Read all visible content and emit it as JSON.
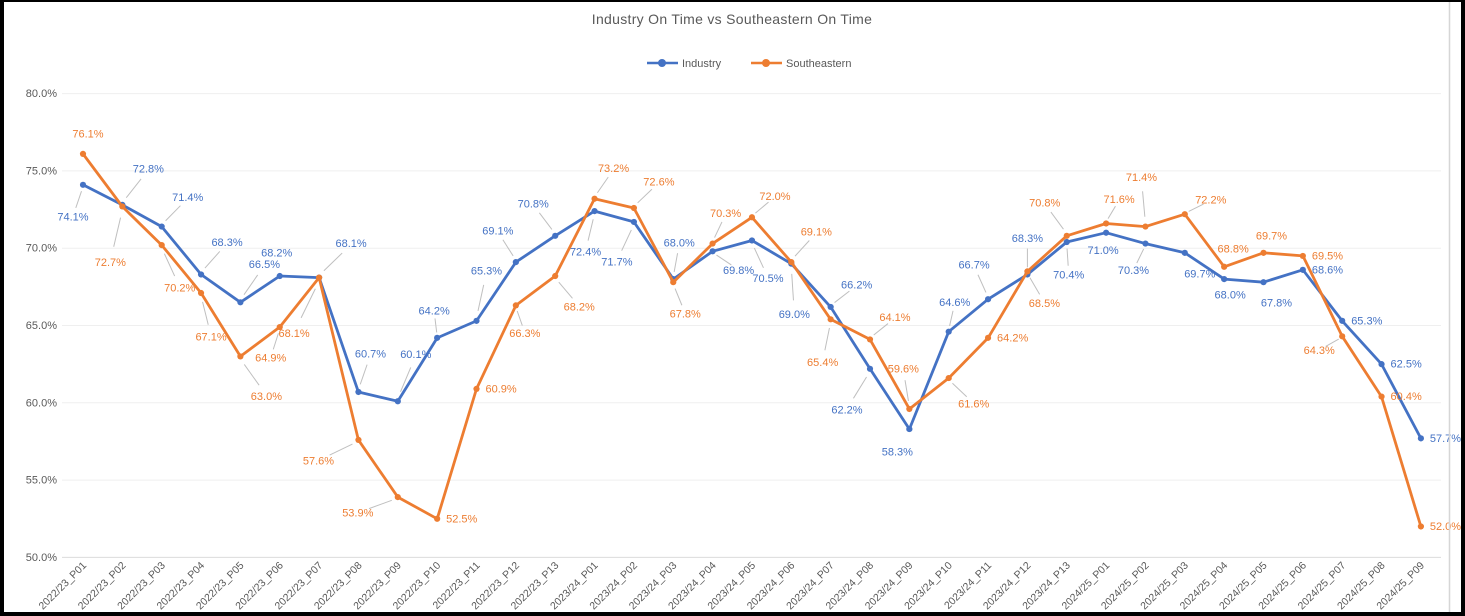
{
  "chart_data": {
    "type": "line",
    "title": "Industry On Time vs Southeastern On Time",
    "legend_position": "top",
    "grid": true,
    "data_labels": true,
    "data_label_format": "0.0%",
    "categories": [
      "2022/23_P01",
      "2022/23_P02",
      "2022/23_P03",
      "2022/23_P04",
      "2022/23_P05",
      "2022/23_P06",
      "2022/23_P07",
      "2022/23_P08",
      "2022/23_P09",
      "2022/23_P10",
      "2022/23_P11",
      "2022/23_P12",
      "2022/23_P13",
      "2023/24_P01",
      "2023/24_P02",
      "2023/24_P03",
      "2023/24_P04",
      "2023/24_P05",
      "2023/24_P06",
      "2023/24_P07",
      "2023/24_P08",
      "2023/24_P09",
      "2023/24_P10",
      "2023/24_P11",
      "2023/24_P12",
      "2023/24_P13",
      "2024/25_P01",
      "2024/25_P02",
      "2024/25_P03",
      "2024/25_P04",
      "2024/25_P05",
      "2024/25_P06",
      "2024/25_P07",
      "2024/25_P08",
      "2024/25_P09"
    ],
    "y_axis": {
      "min": 50,
      "max": 80,
      "step": 5,
      "tick_values": [
        80,
        75,
        70,
        65,
        60,
        55,
        50
      ],
      "tick_labels": [
        "80.0%",
        "75.0%",
        "70.0%",
        "65.0%",
        "60.0%",
        "55.0%",
        "50.0%"
      ]
    },
    "series": [
      {
        "name": "Industry",
        "color": "#4472C4",
        "values": [
          74.1,
          72.8,
          71.4,
          68.3,
          66.5,
          68.2,
          68.1,
          60.7,
          60.1,
          64.2,
          65.3,
          69.1,
          70.8,
          72.4,
          71.7,
          68.0,
          69.8,
          70.5,
          69.0,
          66.2,
          62.2,
          58.3,
          64.6,
          66.7,
          68.3,
          70.4,
          71.0,
          70.3,
          69.7,
          68.0,
          67.8,
          68.6,
          65.3,
          62.5,
          57.7
        ]
      },
      {
        "name": "Southeastern",
        "color": "#ED7D31",
        "values": [
          76.1,
          72.7,
          70.2,
          67.1,
          63.0,
          64.9,
          68.1,
          57.6,
          53.9,
          52.5,
          60.9,
          66.3,
          68.2,
          73.2,
          72.6,
          67.8,
          70.3,
          72.0,
          69.1,
          65.4,
          64.1,
          59.6,
          61.6,
          64.2,
          68.5,
          70.8,
          71.6,
          71.4,
          72.2,
          68.8,
          69.7,
          69.5,
          64.3,
          60.4,
          52.0
        ]
      }
    ]
  }
}
